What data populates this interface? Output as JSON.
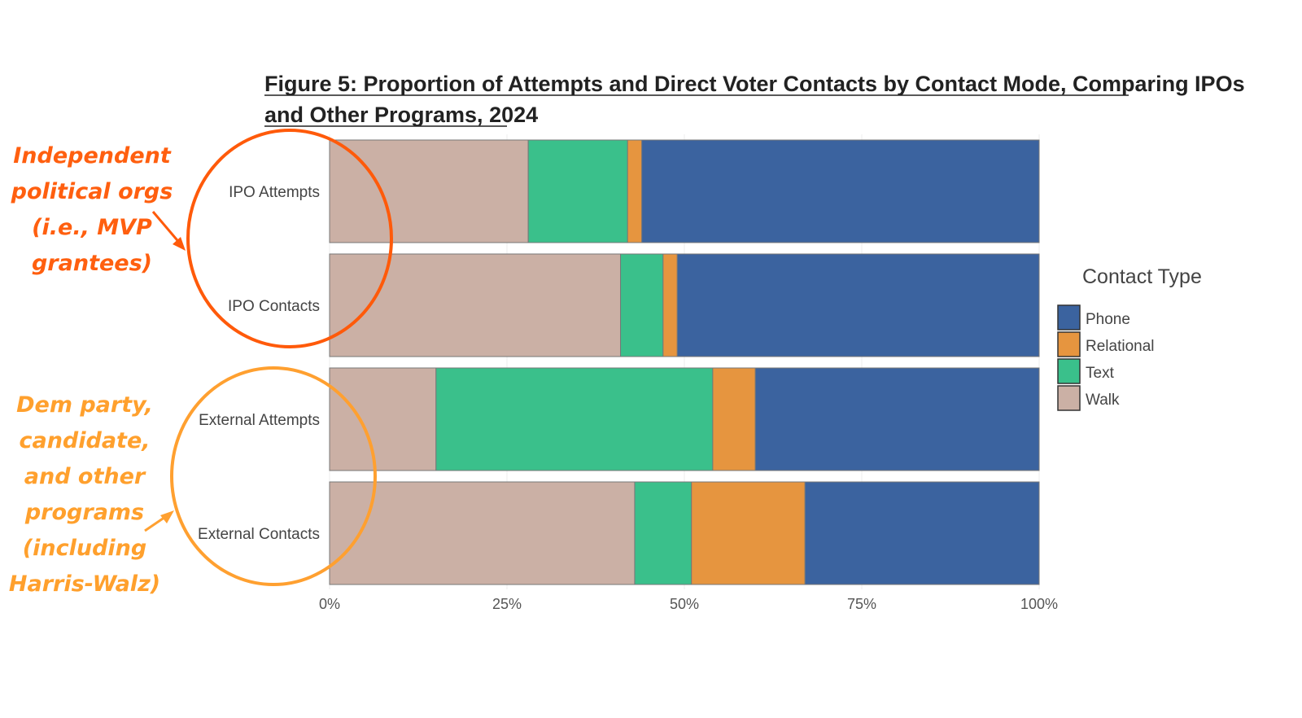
{
  "chart_data": {
    "type": "bar",
    "orientation": "horizontal",
    "stacked": true,
    "title_lines": [
      "Figure 5: Proportion of Attempts and Direct Voter Contacts by Contact Mode, Comparing IPOs",
      "and Other Programs, 2024"
    ],
    "categories": [
      "IPO Attempts",
      "IPO Contacts",
      "External Attempts",
      "External Contacts"
    ],
    "series": [
      {
        "name": "Walk",
        "color": "#cbb0a5",
        "values": [
          28,
          41,
          15,
          43
        ]
      },
      {
        "name": "Text",
        "color": "#3ac08b",
        "values": [
          14,
          6,
          39,
          8
        ]
      },
      {
        "name": "Relational",
        "color": "#e6953f",
        "values": [
          2,
          2,
          6,
          16
        ]
      },
      {
        "name": "Phone",
        "color": "#3b639f",
        "values": [
          56,
          51,
          40,
          33
        ]
      }
    ],
    "xlim": [
      0,
      100
    ],
    "x_ticks": [
      "0%",
      "25%",
      "50%",
      "75%",
      "100%"
    ],
    "xlabel": "",
    "ylabel": "",
    "legend": {
      "title": "Contact Type",
      "position": "right",
      "entries": [
        "Phone",
        "Relational",
        "Text",
        "Walk"
      ]
    },
    "grid": true
  },
  "annotations": {
    "ipo_note": {
      "lines": [
        "Independent",
        "political orgs",
        "(i.e., MVP",
        "grantees)"
      ],
      "color": "#ff5f0f"
    },
    "external_note": {
      "lines": [
        "Dem party,",
        "candidate,",
        "and other",
        "programs",
        "(including",
        "Harris-Walz)"
      ],
      "color": "#ffa02d"
    }
  }
}
